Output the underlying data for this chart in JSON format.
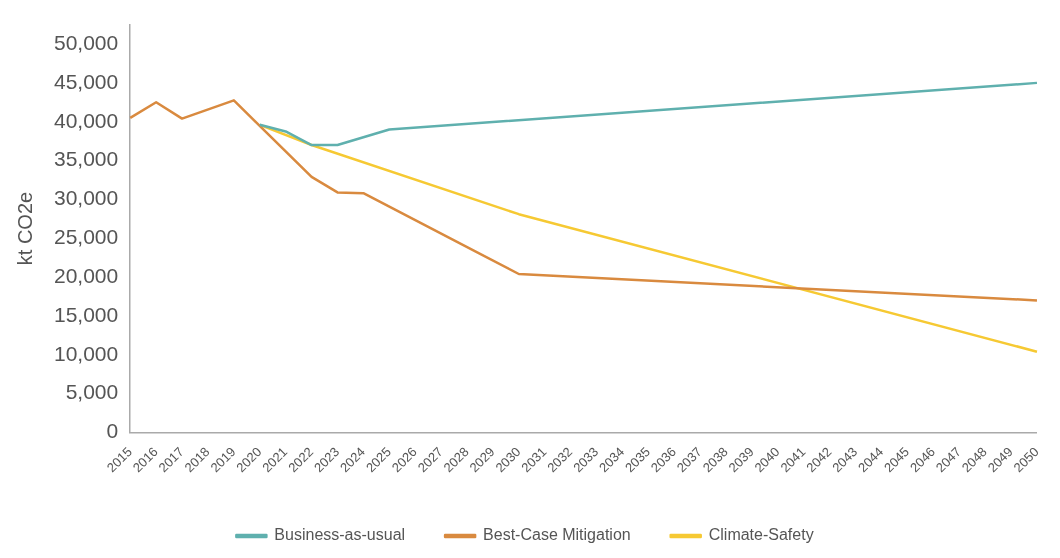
{
  "chart_data": {
    "type": "line",
    "ylabel": "kt CO2e",
    "categories": [
      "2015",
      "2016",
      "2017",
      "2018",
      "2019",
      "2020",
      "2021",
      "2022",
      "2023",
      "2024",
      "2025",
      "2026",
      "2027",
      "2028",
      "2029",
      "2030",
      "2031",
      "2032",
      "2033",
      "2034",
      "2035",
      "2036",
      "2037",
      "2038",
      "2039",
      "2040",
      "2041",
      "2042",
      "2043",
      "2044",
      "2045",
      "2046",
      "2047",
      "2048",
      "2049",
      "2050"
    ],
    "series": [
      {
        "name": "Business-as-usual",
        "color": "#5fb0ae",
        "values": [
          null,
          null,
          null,
          null,
          null,
          39600,
          38750,
          37000,
          37000,
          null,
          39000,
          null,
          null,
          null,
          null,
          null,
          null,
          null,
          null,
          null,
          null,
          null,
          null,
          null,
          null,
          null,
          null,
          null,
          null,
          null,
          null,
          null,
          null,
          null,
          null,
          45000
        ]
      },
      {
        "name": "Best-Case Mitigation",
        "color": "#d98a3f",
        "values": [
          40500,
          42500,
          40400,
          null,
          42750,
          null,
          null,
          32900,
          30900,
          30800,
          null,
          null,
          null,
          null,
          null,
          20400,
          null,
          null,
          null,
          null,
          null,
          null,
          null,
          null,
          null,
          null,
          null,
          null,
          null,
          null,
          null,
          null,
          null,
          null,
          null,
          17000
        ]
      },
      {
        "name": "Climate-Safety",
        "color": "#f6c933",
        "values": [
          null,
          null,
          null,
          null,
          null,
          39600,
          null,
          37000,
          null,
          null,
          null,
          null,
          null,
          null,
          null,
          28100,
          null,
          null,
          null,
          null,
          null,
          null,
          null,
          null,
          null,
          null,
          null,
          null,
          null,
          null,
          null,
          null,
          null,
          null,
          null,
          10400
        ]
      }
    ],
    "ylim": [
      0,
      52500
    ],
    "yticks": [
      0,
      {
        "value": 5000,
        "label": "5,000"
      },
      {
        "value": 10000,
        "label": "10,000"
      },
      {
        "value": 15000,
        "label": "15,000"
      },
      {
        "value": 20000,
        "label": "20,000"
      },
      {
        "value": 25000,
        "label": "25,000"
      },
      {
        "value": 30000,
        "label": "30,000"
      },
      {
        "value": 35000,
        "label": "35,000"
      },
      {
        "value": 40000,
        "label": "40,000"
      },
      {
        "value": 45000,
        "label": "45,000"
      },
      {
        "value": 50000,
        "label": "50,000"
      }
    ],
    "grid": false,
    "legend": "bottom",
    "marker": "none",
    "line_style": "solid"
  }
}
